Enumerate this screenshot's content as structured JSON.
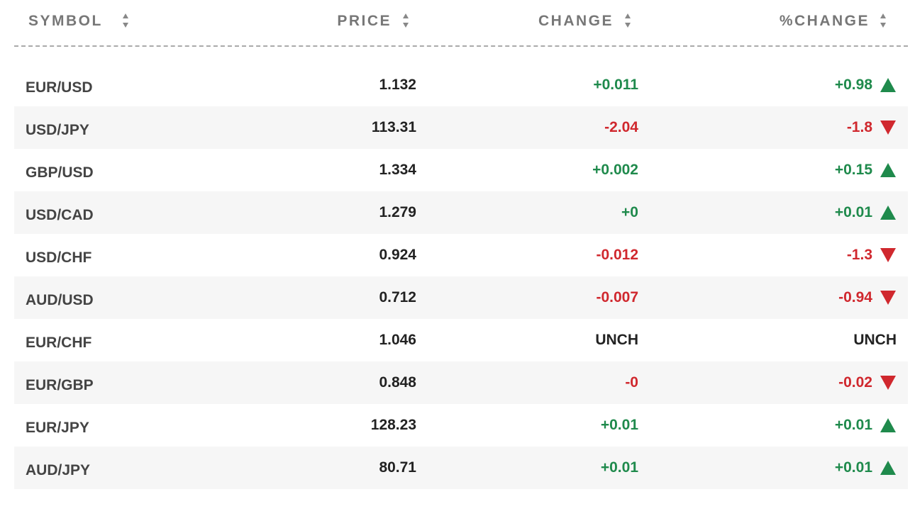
{
  "table": {
    "header": [
      "SYMBOL",
      "PRICE",
      "CHANGE",
      "%CHANGE"
    ],
    "rows": [
      {
        "symbol": "EUR/USD",
        "price": "1.132",
        "change": "+0.011",
        "pct_change": "+0.98",
        "trend": "up"
      },
      {
        "symbol": "USD/JPY",
        "price": "113.31",
        "change": "-2.04",
        "pct_change": "-1.8",
        "trend": "down"
      },
      {
        "symbol": "GBP/USD",
        "price": "1.334",
        "change": "+0.002",
        "pct_change": "+0.15",
        "trend": "up"
      },
      {
        "symbol": "USD/CAD",
        "price": "1.279",
        "change": "+0",
        "pct_change": "+0.01",
        "trend": "up"
      },
      {
        "symbol": "USD/CHF",
        "price": "0.924",
        "change": "-0.012",
        "pct_change": "-1.3",
        "trend": "down"
      },
      {
        "symbol": "AUD/USD",
        "price": "0.712",
        "change": "-0.007",
        "pct_change": "-0.94",
        "trend": "down"
      },
      {
        "symbol": "EUR/CHF",
        "price": "1.046",
        "change": "UNCH",
        "pct_change": "UNCH",
        "trend": "unch"
      },
      {
        "symbol": "EUR/GBP",
        "price": "0.848",
        "change": "-0",
        "pct_change": "-0.02",
        "trend": "down"
      },
      {
        "symbol": "EUR/JPY",
        "price": "128.23",
        "change": "+0.01",
        "pct_change": "+0.01",
        "trend": "up"
      },
      {
        "symbol": "AUD/JPY",
        "price": "80.71",
        "change": "+0.01",
        "pct_change": "+0.01",
        "trend": "up"
      }
    ]
  }
}
